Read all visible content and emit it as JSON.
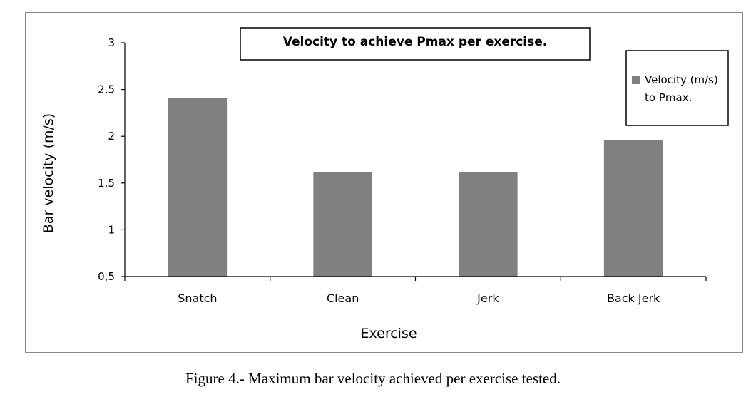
{
  "chart_data": {
    "type": "bar",
    "title": "Velocity to achieve Pmax per exercise.",
    "xlabel": "Exercise",
    "ylabel": "Bar velocity (m/s)",
    "categories": [
      "Snatch",
      "Clean",
      "Jerk",
      "Back Jerk"
    ],
    "series": [
      {
        "name": "Velocity (m/s) to Pmax.",
        "legend_lines": [
          "Velocity (m/s)",
          "to Pmax."
        ],
        "values": [
          2.41,
          1.62,
          1.62,
          1.96
        ],
        "color": "#808080"
      }
    ],
    "ylim": [
      0.5,
      3
    ],
    "yticks": [
      0.5,
      1,
      1.5,
      2,
      2.5,
      3
    ],
    "ytick_labels": [
      "0,5",
      "1",
      "1,5",
      "2",
      "2,5",
      "3"
    ],
    "grid": false,
    "legend_position": "right"
  },
  "caption": "Figure 4.- Maximum bar velocity achieved per exercise tested."
}
